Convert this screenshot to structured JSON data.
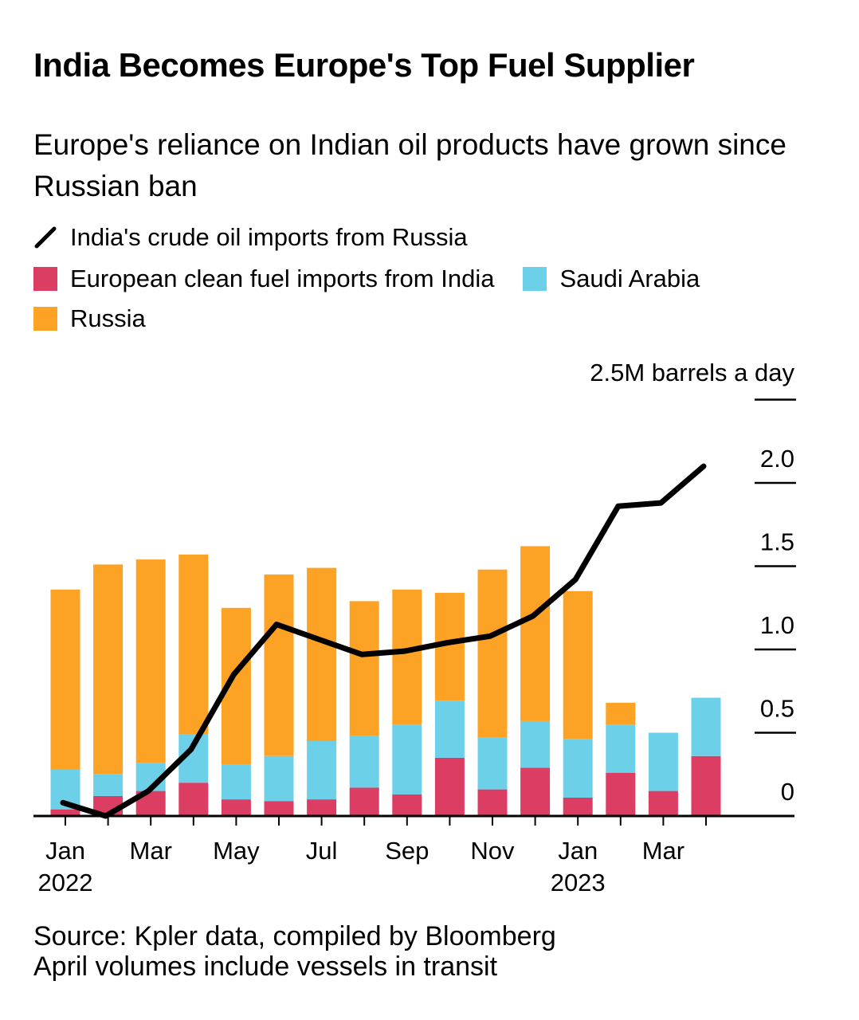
{
  "chart_data": {
    "type": "bar",
    "stacked": true,
    "title": "India Becomes Europe's Top Fuel Supplier",
    "subtitle": "Europe's reliance on Indian oil products have grown since Russian ban",
    "unit_label": "2.5M barrels a day",
    "ylim": [
      0,
      2.5
    ],
    "y_ticks": [
      {
        "value": 0,
        "label": "0"
      },
      {
        "value": 0.5,
        "label": "0.5"
      },
      {
        "value": 1.0,
        "label": "1.0"
      },
      {
        "value": 1.5,
        "label": "1.5"
      },
      {
        "value": 2.0,
        "label": "2.0"
      },
      {
        "value": 2.5,
        "label": ""
      }
    ],
    "categories": [
      "Jan 2022",
      "Feb 2022",
      "Mar 2022",
      "Apr 2022",
      "May 2022",
      "Jun 2022",
      "Jul 2022",
      "Aug 2022",
      "Sep 2022",
      "Oct 2022",
      "Nov 2022",
      "Dec 2022",
      "Jan 2023",
      "Feb 2023",
      "Mar 2023",
      "Apr 2023"
    ],
    "x_tick_labels": [
      {
        "index": 0,
        "line1": "Jan",
        "line2": "2022"
      },
      {
        "index": 2,
        "line1": "Mar",
        "line2": ""
      },
      {
        "index": 4,
        "line1": "May",
        "line2": ""
      },
      {
        "index": 6,
        "line1": "Jul",
        "line2": ""
      },
      {
        "index": 8,
        "line1": "Sep",
        "line2": ""
      },
      {
        "index": 10,
        "line1": "Nov",
        "line2": ""
      },
      {
        "index": 12,
        "line1": "Jan",
        "line2": "2023"
      },
      {
        "index": 14,
        "line1": "Mar",
        "line2": ""
      }
    ],
    "series": [
      {
        "name": "European clean fuel imports from India",
        "color": "#dc3d63",
        "values": [
          0.04,
          0.12,
          0.15,
          0.2,
          0.1,
          0.09,
          0.1,
          0.17,
          0.13,
          0.35,
          0.16,
          0.29,
          0.11,
          0.26,
          0.15,
          0.36
        ]
      },
      {
        "name": "Saudi Arabia",
        "color": "#6cd0e8",
        "values": [
          0.24,
          0.13,
          0.17,
          0.29,
          0.21,
          0.27,
          0.35,
          0.31,
          0.42,
          0.34,
          0.31,
          0.28,
          0.35,
          0.29,
          0.35,
          0.35
        ]
      },
      {
        "name": "Russia",
        "color": "#fca325",
        "values": [
          1.08,
          1.26,
          1.22,
          1.08,
          0.94,
          1.09,
          1.04,
          0.81,
          0.81,
          0.65,
          1.01,
          1.05,
          0.89,
          0.13,
          0.0,
          0.0
        ]
      }
    ],
    "line_series": {
      "name": "India's crude oil imports from Russia",
      "color": "#000000",
      "values": [
        0.08,
        0.0,
        0.15,
        0.4,
        0.85,
        1.15,
        1.06,
        0.97,
        0.99,
        1.04,
        1.08,
        1.2,
        1.42,
        1.86,
        1.88,
        2.1
      ]
    },
    "legend": {
      "line_label": "India's crude oil imports from Russia",
      "india_label": "European clean fuel imports from India",
      "saudi_label": "Saudi Arabia",
      "russia_label": "Russia"
    },
    "source": "Source: Kpler data, compiled by Bloomberg",
    "note": "April volumes include vessels in transit"
  }
}
